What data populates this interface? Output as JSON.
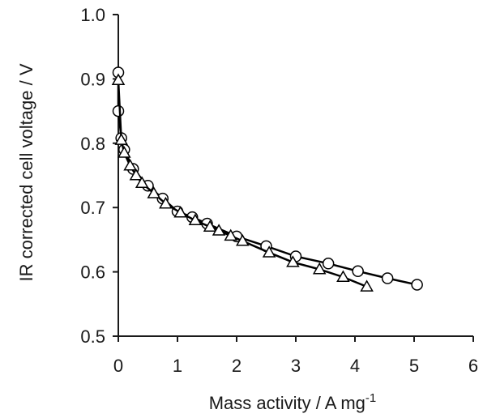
{
  "chart_data": {
    "type": "line",
    "title": "",
    "xlabel": "Mass  activity  /  A  mg",
    "xlabel_superscript": "-1",
    "ylabel": "IR  corrected  cell  voltage  /  V",
    "xlim": [
      0,
      6
    ],
    "ylim": [
      0.5,
      1.0
    ],
    "xticks": [
      "0",
      "1",
      "2",
      "3",
      "4",
      "5",
      "6"
    ],
    "yticks": [
      "0.5",
      "0.6",
      "0.7",
      "0.8",
      "0.9",
      "1.0"
    ],
    "grid": false,
    "legend": "none",
    "series": [
      {
        "marker": "circle",
        "color": "#000000",
        "x": [
          0.0,
          0.0,
          0.05,
          0.1,
          0.25,
          0.5,
          0.75,
          1.0,
          1.25,
          1.5,
          2.0,
          2.5,
          3.0,
          3.55,
          4.05,
          4.55,
          5.05
        ],
        "y": [
          0.91,
          0.85,
          0.808,
          0.79,
          0.76,
          0.734,
          0.714,
          0.694,
          0.685,
          0.675,
          0.655,
          0.64,
          0.624,
          0.613,
          0.601,
          0.59,
          0.58
        ]
      },
      {
        "marker": "triangle",
        "color": "#000000",
        "x": [
          0.0,
          0.05,
          0.1,
          0.2,
          0.3,
          0.4,
          0.6,
          0.8,
          1.05,
          1.3,
          1.55,
          1.7,
          1.9,
          2.1,
          2.55,
          2.95,
          3.4,
          3.8,
          4.2
        ],
        "y": [
          0.898,
          0.805,
          0.785,
          0.765,
          0.75,
          0.738,
          0.722,
          0.706,
          0.692,
          0.68,
          0.67,
          0.664,
          0.656,
          0.648,
          0.63,
          0.615,
          0.604,
          0.592,
          0.577
        ]
      }
    ]
  }
}
